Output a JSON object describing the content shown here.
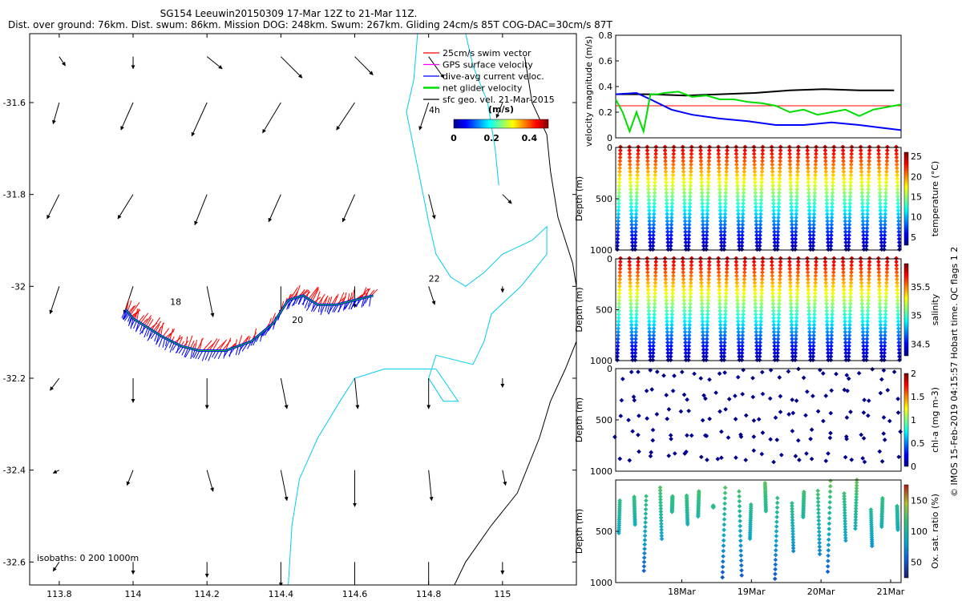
{
  "title_line1": "SG154 Leeuwin20150309 17-Mar 12Z to 21-Mar 11Z.",
  "title_line2": "Dist. over ground: 76km. Dist. swum: 86km. Mission DOG: 248km. Swum: 267km. Gliding 24cm/s 85T COG-DAC=30cm/s 87T",
  "credit": "© IMOS 15-Feb-2019 04:15:57 Hobart time. QC flags 1  2",
  "colors": {
    "swim": "#ff0000",
    "gps": "#ff00ff",
    "dac": "#0000ff",
    "net": "#00dd00",
    "geo": "#000000",
    "coast": "#000000",
    "isobath": "#00ccee"
  },
  "chart_data": [
    {
      "type": "scatter",
      "name": "track-map",
      "xlim": [
        113.72,
        115.2
      ],
      "ylim": [
        -32.65,
        -31.45
      ],
      "xticks": [
        113.8,
        114,
        114.2,
        114.4,
        114.6,
        114.8,
        115
      ],
      "xtick_labels": [
        "113.8",
        "114",
        "114.2",
        "114.4",
        "114.6",
        "114.8",
        "115"
      ],
      "yticks": [
        -31.6,
        -31.8,
        -32,
        -32.2,
        -32.4,
        -32.6
      ],
      "ytick_labels": [
        "-31.6",
        "-31.8",
        "-32",
        "-32.2",
        "-32.4",
        "-32.6"
      ],
      "legend": [
        {
          "label": "25cm/s swim vector",
          "color": "#ff0000"
        },
        {
          "label": "GPS surface velocity",
          "color": "#ff00ff"
        },
        {
          "label": "dive-avg current veloc.",
          "color": "#0000ff"
        },
        {
          "label": "net glider velocity",
          "color": "#00dd00"
        },
        {
          "label": "sfc geo. vel. 21-Mar-2015",
          "color": "#000000"
        }
      ],
      "scale_label": "4h",
      "colorbar": {
        "label": "(m/s)",
        "range": [
          0,
          0.5
        ],
        "ticks": [
          0,
          0.2,
          0.4
        ],
        "tick_labels": [
          "0",
          "0.2",
          "0.4"
        ]
      },
      "isobaths_label": "isobaths: 0   200  1000m",
      "day_labels": [
        {
          "text": "18",
          "lon": 114.1,
          "lat": -32.04
        },
        {
          "text": "20",
          "lon": 114.43,
          "lat": -32.08
        },
        {
          "text": "22",
          "lon": 114.8,
          "lat": -31.99
        }
      ],
      "track": [
        [
          113.98,
          -32.05
        ],
        [
          114.0,
          -32.07
        ],
        [
          114.04,
          -32.09
        ],
        [
          114.08,
          -32.11
        ],
        [
          114.13,
          -32.13
        ],
        [
          114.18,
          -32.14
        ],
        [
          114.25,
          -32.14
        ],
        [
          114.32,
          -32.12
        ],
        [
          114.38,
          -32.08
        ],
        [
          114.42,
          -32.03
        ],
        [
          114.46,
          -32.02
        ],
        [
          114.5,
          -32.04
        ],
        [
          114.55,
          -32.04
        ],
        [
          114.6,
          -32.03
        ],
        [
          114.65,
          -32.02
        ]
      ],
      "geo_vectors": {
        "lons": [
          113.8,
          114.0,
          114.2,
          114.4,
          114.6,
          114.8,
          115.0
        ],
        "lats": [
          -31.5,
          -31.6,
          -31.8,
          -32.0,
          -32.2,
          -32.4,
          -32.6
        ],
        "u": [
          [
            0.02,
            0.0,
            0.05,
            0.07,
            0.06,
            0.05,
            0.0
          ],
          [
            -0.02,
            -0.04,
            -0.05,
            -0.06,
            -0.06,
            -0.03,
            -0.02
          ],
          [
            -0.04,
            -0.05,
            -0.04,
            -0.04,
            -0.04,
            0.02,
            0.03
          ],
          [
            -0.03,
            -0.03,
            0.02,
            0.0,
            0.0,
            0.02,
            0.0
          ],
          [
            -0.03,
            0.0,
            0.0,
            0.02,
            0.01,
            0.0,
            0.0
          ],
          [
            -0.02,
            -0.02,
            0.02,
            0.02,
            0.0,
            0.01,
            0.01
          ],
          [
            -0.02,
            0.0,
            0.0,
            0.0,
            0.0,
            0.0,
            0.0
          ]
        ],
        "v": [
          [
            -0.03,
            -0.04,
            -0.04,
            -0.07,
            -0.06,
            -0.07,
            0.0
          ],
          [
            -0.07,
            -0.09,
            -0.11,
            -0.1,
            -0.09,
            -0.09,
            -0.05
          ],
          [
            -0.08,
            -0.08,
            -0.1,
            -0.09,
            -0.09,
            -0.08,
            -0.03
          ],
          [
            -0.09,
            -0.09,
            -0.1,
            -0.09,
            -0.07,
            -0.06,
            -0.02
          ],
          [
            -0.04,
            -0.08,
            -0.1,
            -0.1,
            -0.1,
            -0.1,
            -0.03
          ],
          [
            -0.01,
            -0.05,
            -0.07,
            -0.1,
            -0.12,
            -0.1,
            -0.05
          ],
          [
            -0.03,
            -0.04,
            -0.05,
            -0.08,
            -0.11,
            -0.1,
            -0.04
          ]
        ]
      }
    },
    {
      "type": "line",
      "name": "velocity-magnitude",
      "ylabel": "velocity magnitude (m/s)",
      "ylim": [
        0,
        0.8
      ],
      "yticks": [
        0,
        0.2,
        0.4,
        0.6,
        0.8
      ],
      "ytick_labels": [
        "0",
        "0.2",
        "0.4",
        "0.6",
        "0.8"
      ],
      "xlim": [
        17.5,
        21.6
      ],
      "series": [
        {
          "name": "surface geostrophic",
          "color": "#000000",
          "x": [
            17.5,
            18.0,
            18.5,
            19.0,
            19.5,
            20.0,
            20.5,
            21.0,
            21.5
          ],
          "y": [
            0.34,
            0.34,
            0.33,
            0.34,
            0.35,
            0.37,
            0.38,
            0.37,
            0.37
          ]
        },
        {
          "name": "swim",
          "color": "#ff0000",
          "x": [
            17.5,
            21.6
          ],
          "y": [
            0.25,
            0.25
          ]
        },
        {
          "name": "dive-avg current",
          "color": "#0000ff",
          "x": [
            17.5,
            17.8,
            18.0,
            18.3,
            18.6,
            19.0,
            19.4,
            19.8,
            20.2,
            20.6,
            21.0,
            21.3,
            21.6
          ],
          "y": [
            0.34,
            0.35,
            0.3,
            0.22,
            0.18,
            0.15,
            0.13,
            0.1,
            0.1,
            0.12,
            0.1,
            0.08,
            0.06
          ]
        },
        {
          "name": "net glider",
          "color": "#00dd00",
          "x": [
            17.5,
            17.6,
            17.7,
            17.8,
            17.9,
            18.0,
            18.1,
            18.2,
            18.4,
            18.6,
            18.8,
            19.0,
            19.2,
            19.4,
            19.6,
            19.8,
            20.0,
            20.2,
            20.4,
            20.6,
            20.8,
            21.0,
            21.2,
            21.4,
            21.6
          ],
          "y": [
            0.3,
            0.2,
            0.05,
            0.2,
            0.05,
            0.34,
            0.34,
            0.35,
            0.36,
            0.32,
            0.33,
            0.3,
            0.3,
            0.28,
            0.27,
            0.25,
            0.2,
            0.22,
            0.18,
            0.2,
            0.22,
            0.17,
            0.22,
            0.24,
            0.26
          ]
        }
      ]
    },
    {
      "type": "scatter",
      "name": "temperature",
      "ylabel": "Depth (m)",
      "ylim": [
        1000,
        0
      ],
      "yticks": [
        0,
        500,
        1000
      ],
      "ytick_labels": [
        "0",
        "500",
        "1000"
      ],
      "colorbar": {
        "label": "temperature (°C)",
        "range": [
          3,
          26
        ],
        "ticks": [
          5,
          10,
          15,
          20,
          25
        ],
        "tick_labels": [
          "5",
          "10",
          "15",
          "20",
          "25"
        ]
      },
      "profiles": 32,
      "max_depth": 1000
    },
    {
      "type": "scatter",
      "name": "salinity",
      "ylabel": "Depth (m)",
      "ylim": [
        1000,
        0
      ],
      "yticks": [
        0,
        500,
        1000
      ],
      "ytick_labels": [
        "0",
        "500",
        "1000"
      ],
      "colorbar": {
        "label": "salinity",
        "range": [
          34.3,
          35.9
        ],
        "ticks": [
          34.5,
          35,
          35.5
        ],
        "tick_labels": [
          "34.5",
          "35",
          "35.5"
        ]
      },
      "profiles": 32,
      "max_depth": 1000
    },
    {
      "type": "scatter",
      "name": "chlorophyll",
      "ylabel": "Depth (m)",
      "ylim": [
        1000,
        0
      ],
      "yticks": [
        0,
        500,
        1000
      ],
      "ytick_labels": [
        "0",
        "500",
        "1000"
      ],
      "colorbar": {
        "label": "chl-a (mg m-3)",
        "range": [
          0,
          2
        ],
        "ticks": [
          0,
          0.5,
          1,
          1.5,
          2
        ],
        "tick_labels": [
          "0",
          "0.5",
          "1",
          "1.5",
          "2"
        ]
      },
      "profiles": 32,
      "max_depth": 1000
    },
    {
      "type": "scatter",
      "name": "oxygen",
      "ylabel": "Depth (m)",
      "ylim": [
        1000,
        0
      ],
      "yticks": [
        500,
        1000
      ],
      "ytick_labels": [
        "500",
        "1000"
      ],
      "colorbar": {
        "label": "Ox. sat. ratio (%)",
        "range": [
          25,
          175
        ],
        "ticks": [
          50,
          100,
          150
        ],
        "tick_labels": [
          "50",
          "100",
          "150"
        ]
      },
      "xticks": [
        18,
        19,
        20,
        21
      ],
      "xtick_labels": [
        "18Mar",
        "19Mar",
        "20Mar",
        "21Mar"
      ],
      "profiles": 22,
      "max_depth": 1000
    }
  ]
}
